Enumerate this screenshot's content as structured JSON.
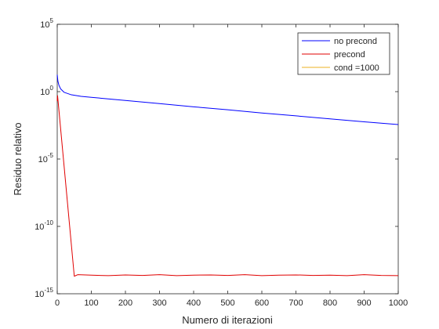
{
  "chart_data": {
    "type": "line",
    "title": "",
    "xlabel": "Numero di iterazioni",
    "ylabel": "Residuo relativo",
    "xlim": [
      0,
      1000
    ],
    "ylim": [
      1e-15,
      100000.0
    ],
    "yscale": "log",
    "x_ticks": [
      0,
      100,
      200,
      300,
      400,
      500,
      600,
      700,
      800,
      900,
      1000
    ],
    "x_tick_labels": [
      "0",
      "100",
      "200",
      "300",
      "400",
      "500",
      "600",
      "700",
      "800",
      "900",
      "1000"
    ],
    "y_ticks": [
      {
        "value": 100000.0,
        "base": "10",
        "exp": "5"
      },
      {
        "value": 1.0,
        "base": "10",
        "exp": "0"
      },
      {
        "value": 1e-05,
        "base": "10",
        "exp": "-5"
      },
      {
        "value": 1e-10,
        "base": "10",
        "exp": "-10"
      },
      {
        "value": 1e-15,
        "base": "10",
        "exp": "-15"
      }
    ],
    "grid": false,
    "legend_position": "top-right",
    "series": [
      {
        "name": "no precond",
        "color": "#0000ff",
        "x": [
          0,
          2,
          5,
          10,
          20,
          40,
          70,
          100,
          200,
          300,
          400,
          500,
          600,
          700,
          800,
          900,
          1000
        ],
        "y": [
          18,
          6,
          3,
          1.6,
          0.9,
          0.6,
          0.45,
          0.38,
          0.22,
          0.13,
          0.075,
          0.045,
          0.026,
          0.016,
          0.0095,
          0.0058,
          0.0036
        ]
      },
      {
        "name": "precond",
        "color": "#e00000",
        "x": [
          0,
          1,
          50,
          60,
          100,
          150,
          200,
          250,
          300,
          350,
          400,
          450,
          500,
          550,
          600,
          650,
          700,
          750,
          800,
          850,
          900,
          950,
          1000
        ],
        "y": [
          0.2,
          0.5,
          2e-14,
          2.6e-14,
          2.4e-14,
          2.2e-14,
          2.5e-14,
          2.3e-14,
          2.6e-14,
          2.2e-14,
          2.4e-14,
          2.5e-14,
          2.3e-14,
          2.6e-14,
          2.2e-14,
          2.4e-14,
          2.5e-14,
          2.3e-14,
          2.4e-14,
          2.2e-14,
          2.6e-14,
          2.3e-14,
          2.2e-14
        ]
      },
      {
        "name": "cond =1000",
        "color": "#edb120",
        "x": [],
        "y": []
      }
    ]
  }
}
